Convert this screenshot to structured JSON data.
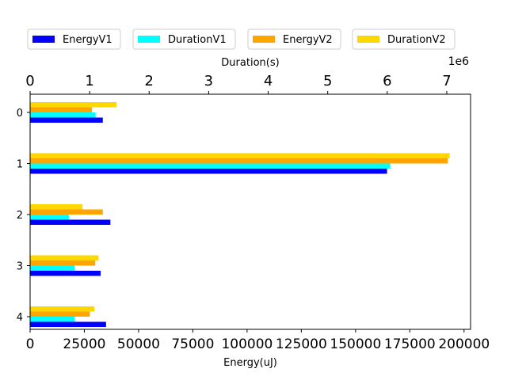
{
  "chart_data": {
    "type": "bar",
    "orientation": "horizontal",
    "categories": [
      "0",
      "1",
      "2",
      "3",
      "4"
    ],
    "bottom_axis": {
      "label": "Energy(uJ)",
      "range": [
        0,
        203000
      ],
      "ticks": [
        0,
        25000,
        50000,
        75000,
        100000,
        125000,
        150000,
        175000,
        200000
      ]
    },
    "top_axis": {
      "label": "Duration(s)",
      "range": [
        0,
        7.4
      ],
      "ticks": [
        0,
        1,
        2,
        3,
        4,
        5,
        6,
        7
      ],
      "offset_label": "1e6"
    },
    "series": [
      {
        "name": "EnergyV1",
        "axis": "bottom",
        "color": "#0000ff",
        "values": [
          33500,
          164500,
          37000,
          32500,
          35000
        ]
      },
      {
        "name": "DurationV1",
        "axis": "top",
        "color": "#00ffff",
        "values": [
          1.1,
          6.05,
          0.65,
          0.75,
          0.75
        ]
      },
      {
        "name": "EnergyV2",
        "axis": "bottom",
        "color": "#ffa500",
        "values": [
          28500,
          192500,
          33500,
          30000,
          27500
        ]
      },
      {
        "name": "DurationV2",
        "axis": "top",
        "color": "#ffd700",
        "values": [
          1.45,
          7.05,
          0.88,
          1.15,
          1.08
        ]
      }
    ],
    "legend_position": "top",
    "grid": false
  }
}
